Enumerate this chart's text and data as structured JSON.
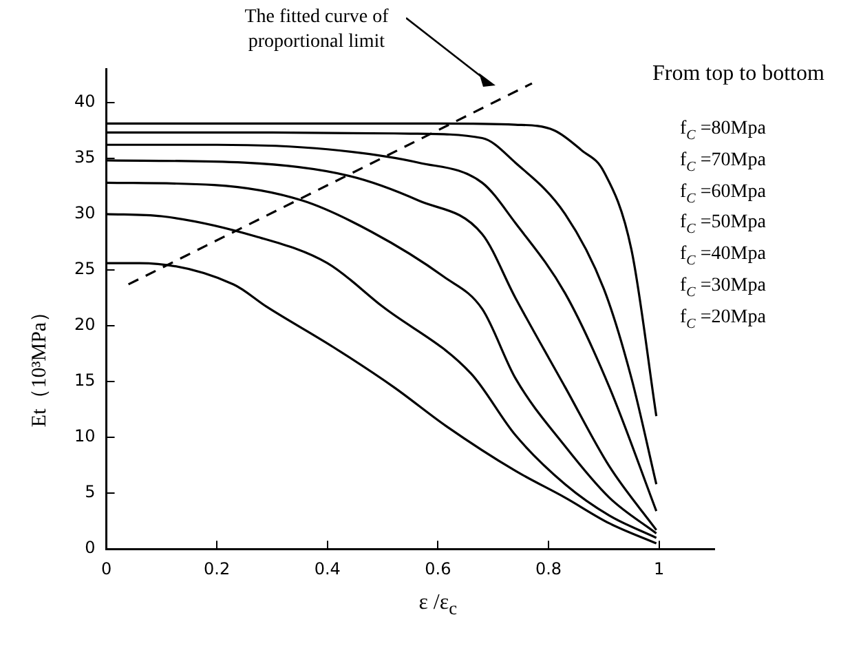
{
  "chart_data": {
    "type": "line",
    "xlabel": "ε /ε$_{c}$",
    "ylabel": "Et（10³MPa）",
    "legend_title": "From top to bottom",
    "legend": "right",
    "grid": false,
    "marker": "none",
    "xlim": [
      0,
      1.1
    ],
    "xticks": [
      0,
      0.2,
      0.4,
      0.6,
      0.8,
      1
    ],
    "ylim": [
      0,
      43
    ],
    "yticks": [
      0,
      5,
      10,
      15,
      20,
      25,
      30,
      35,
      40
    ],
    "annotations": [
      "The fitted curve of proportional limit"
    ],
    "series": [
      {
        "name": "f$_{C}$ =80Mpa",
        "color": "#000000",
        "line_style": "solid",
        "x": [
          0,
          0.2,
          0.4,
          0.6,
          0.74,
          0.81,
          0.86,
          0.9,
          0.95,
          0.995
        ],
        "values": [
          38.1,
          38.1,
          38.1,
          38.1,
          38.0,
          37.5,
          35.7,
          33.8,
          26.8,
          11.9
        ]
      },
      {
        "name": "f$_{C}$ =70Mpa",
        "color": "#000000",
        "line_style": "solid",
        "x": [
          0,
          0.3,
          0.55,
          0.68,
          0.74,
          0.83,
          0.9,
          0.95,
          0.995
        ],
        "values": [
          37.3,
          37.3,
          37.2,
          36.8,
          34.6,
          30,
          23.3,
          15.3,
          5.8
        ]
      },
      {
        "name": "f$_{C}$ =60Mpa",
        "color": "#000000",
        "line_style": "solid",
        "x": [
          0,
          0.2,
          0.4,
          0.565,
          0.68,
          0.74,
          0.83,
          0.91,
          0.995
        ],
        "values": [
          36.2,
          36.2,
          35.8,
          34.6,
          32.8,
          29.2,
          22.9,
          14.5,
          3.4
        ]
      },
      {
        "name": "f$_{C}$ =50Mpa",
        "color": "#000000",
        "line_style": "solid",
        "x": [
          0,
          0.25,
          0.44,
          0.565,
          0.68,
          0.74,
          0.83,
          0.91,
          0.995
        ],
        "values": [
          34.8,
          34.6,
          33.4,
          31.2,
          28.2,
          22.5,
          14.5,
          7.4,
          1.7
        ]
      },
      {
        "name": "f$_{C}$ =40Mpa",
        "color": "#000000",
        "line_style": "solid",
        "x": [
          0,
          0.195,
          0.355,
          0.48,
          0.61,
          0.68,
          0.74,
          0.83,
          0.91,
          0.995
        ],
        "values": [
          32.8,
          32.6,
          31.2,
          28.4,
          24.4,
          21.5,
          15.3,
          9.2,
          4.6,
          1.4
        ]
      },
      {
        "name": "f$_{C}$ =30Mpa",
        "color": "#000000",
        "line_style": "solid",
        "x": [
          0,
          0.1,
          0.27,
          0.4,
          0.5,
          0.66,
          0.74,
          0.83,
          0.91,
          0.995
        ],
        "values": [
          30,
          29.8,
          28,
          25.6,
          21.7,
          15.7,
          10.2,
          5.8,
          3.0,
          1.0
        ]
      },
      {
        "name": "f$_{C}$ =20Mpa",
        "color": "#000000",
        "line_style": "solid",
        "x": [
          0,
          0.06,
          0.23,
          0.29,
          0.41,
          0.52,
          0.615,
          0.74,
          0.83,
          0.91,
          0.995
        ],
        "values": [
          25.6,
          25.6,
          23.7,
          21.7,
          18.1,
          14.5,
          11.0,
          7.0,
          4.6,
          2.3,
          0.5
        ]
      },
      {
        "color": "#000000",
        "line_style": "dashed",
        "x": [
          0.04,
          0.77
        ],
        "values": [
          23.7,
          41.7
        ]
      }
    ]
  }
}
